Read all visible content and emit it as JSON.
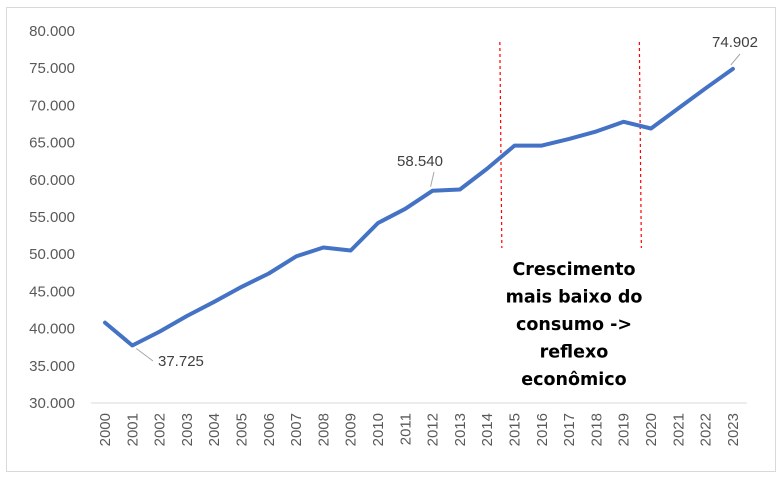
{
  "chart_data": {
    "type": "line",
    "title": "",
    "xlabel": "",
    "ylabel": "",
    "x": [
      "2000",
      "2001",
      "2002",
      "2003",
      "2004",
      "2005",
      "2006",
      "2007",
      "2008",
      "2009",
      "2010",
      "2011",
      "2012",
      "2013",
      "2014",
      "2015",
      "2016",
      "2017",
      "2018",
      "2019",
      "2020",
      "2021",
      "2022",
      "2023"
    ],
    "series": [
      {
        "values": [
          40800,
          37725,
          39600,
          41700,
          43600,
          45600,
          47400,
          49700,
          50900,
          50500,
          54200,
          56100,
          58540,
          58700,
          61500,
          64600,
          64600,
          65500,
          66500,
          67800,
          66900,
          69600,
          72300,
          74902
        ]
      }
    ],
    "ylim": [
      30000,
      80000
    ],
    "ytick_labels": [
      "30.000",
      "35.000",
      "40.000",
      "45.000",
      "50.000",
      "55.000",
      "60.000",
      "65.000",
      "70.000",
      "75.000",
      "80.000"
    ],
    "line_color": "#4472c4",
    "grid": false,
    "data_labels": [
      {
        "index": 1,
        "text": "37.725"
      },
      {
        "index": 12,
        "text": "58.540"
      },
      {
        "index": 23,
        "text": "74.902"
      }
    ],
    "reference_lines": {
      "color": "#ff0000",
      "style": "dashed",
      "between": [
        "2014",
        "2015",
        "2019",
        "2020"
      ]
    },
    "annotation": [
      "Crescimento",
      "mais baixo do",
      "consumo ->",
      "reflexo",
      "econômico"
    ]
  }
}
